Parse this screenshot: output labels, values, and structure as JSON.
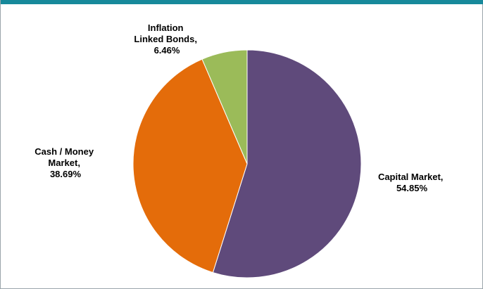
{
  "chart_data": {
    "type": "pie",
    "title": "",
    "slices": [
      {
        "name": "Capital Market",
        "value": 54.85,
        "color": "#5f4a7b",
        "label_lines": [
          "Capital Market,",
          "54.85%"
        ]
      },
      {
        "name": "Cash / Money Market",
        "value": 38.69,
        "color": "#e46c0a",
        "label_lines": [
          "Cash / Money",
          "Market,",
          "38.69%"
        ]
      },
      {
        "name": "Inflation Linked Bonds",
        "value": 6.46,
        "color": "#9bbb59",
        "label_lines": [
          "Inflation",
          "Linked Bonds,",
          "6.46%"
        ]
      }
    ],
    "start_angle": "12 o'clock",
    "direction": "clockwise",
    "legend": "none"
  },
  "theme": {
    "top_bar_color": "#17899b",
    "slice_border_color": "#ffffff"
  }
}
